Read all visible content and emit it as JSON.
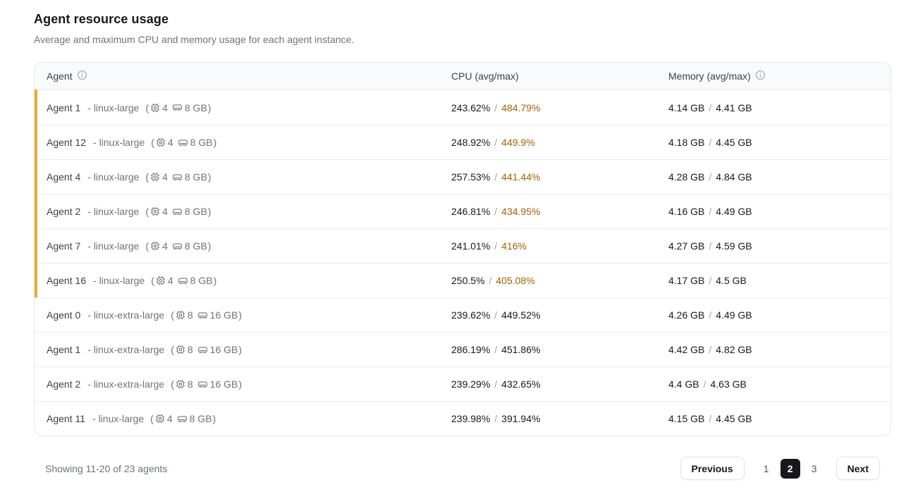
{
  "page": {
    "title": "Agent resource usage",
    "subtitle": "Average and maximum CPU and memory usage for each agent instance."
  },
  "table": {
    "columns": {
      "agent": "Agent",
      "cpu": "CPU (avg/max)",
      "memory": "Memory (avg/max)"
    },
    "separator": "/",
    "spec_open_paren": "(",
    "spec_close_paren": ")",
    "icons": {
      "agent_header": "info-icon",
      "memory_header": "info-icon",
      "spec_cpu": "cpu-chip-icon",
      "spec_memory": "ram-icon"
    },
    "rows": [
      {
        "name": "Agent 1",
        "type": "- linux-large",
        "cpus": "4",
        "mem": "8 GB",
        "cpu_avg": "243.62%",
        "cpu_max": "484.79%",
        "mem_avg": "4.14 GB",
        "mem_max": "4.41 GB",
        "highlight": true
      },
      {
        "name": "Agent 12",
        "type": "- linux-large",
        "cpus": "4",
        "mem": "8 GB",
        "cpu_avg": "248.92%",
        "cpu_max": "449.9%",
        "mem_avg": "4.18 GB",
        "mem_max": "4.45 GB",
        "highlight": true
      },
      {
        "name": "Agent 4",
        "type": "- linux-large",
        "cpus": "4",
        "mem": "8 GB",
        "cpu_avg": "257.53%",
        "cpu_max": "441.44%",
        "mem_avg": "4.28 GB",
        "mem_max": "4.84 GB",
        "highlight": true
      },
      {
        "name": "Agent 2",
        "type": "- linux-large",
        "cpus": "4",
        "mem": "8 GB",
        "cpu_avg": "246.81%",
        "cpu_max": "434.95%",
        "mem_avg": "4.16 GB",
        "mem_max": "4.49 GB",
        "highlight": true
      },
      {
        "name": "Agent 7",
        "type": "- linux-large",
        "cpus": "4",
        "mem": "8 GB",
        "cpu_avg": "241.01%",
        "cpu_max": "416%",
        "mem_avg": "4.27 GB",
        "mem_max": "4.59 GB",
        "highlight": true
      },
      {
        "name": "Agent 16",
        "type": "- linux-large",
        "cpus": "4",
        "mem": "8 GB",
        "cpu_avg": "250.5%",
        "cpu_max": "405.08%",
        "mem_avg": "4.17 GB",
        "mem_max": "4.5 GB",
        "highlight": true
      },
      {
        "name": "Agent 0",
        "type": "- linux-extra-large",
        "cpus": "8",
        "mem": "16 GB",
        "cpu_avg": "239.62%",
        "cpu_max": "449.52%",
        "mem_avg": "4.26 GB",
        "mem_max": "4.49 GB",
        "highlight": false
      },
      {
        "name": "Agent 1",
        "type": "- linux-extra-large",
        "cpus": "8",
        "mem": "16 GB",
        "cpu_avg": "286.19%",
        "cpu_max": "451.86%",
        "mem_avg": "4.42 GB",
        "mem_max": "4.82 GB",
        "highlight": false
      },
      {
        "name": "Agent 2",
        "type": "- linux-extra-large",
        "cpus": "8",
        "mem": "16 GB",
        "cpu_avg": "239.29%",
        "cpu_max": "432.65%",
        "mem_avg": "4.4 GB",
        "mem_max": "4.63 GB",
        "highlight": false
      },
      {
        "name": "Agent 11",
        "type": "- linux-large",
        "cpus": "4",
        "mem": "8 GB",
        "cpu_avg": "239.98%",
        "cpu_max": "391.94%",
        "mem_avg": "4.15 GB",
        "mem_max": "4.45 GB",
        "highlight": false
      }
    ]
  },
  "footer": {
    "summary": "Showing 11-20 of 23 agents",
    "previous_label": "Previous",
    "pages": [
      "1",
      "2",
      "3"
    ],
    "current_page": "2",
    "next_label": "Next"
  },
  "colors": {
    "accent_bar": "#edaa2f",
    "cpu_max_warning": "#a16207",
    "active_page_bg": "#18181b"
  }
}
